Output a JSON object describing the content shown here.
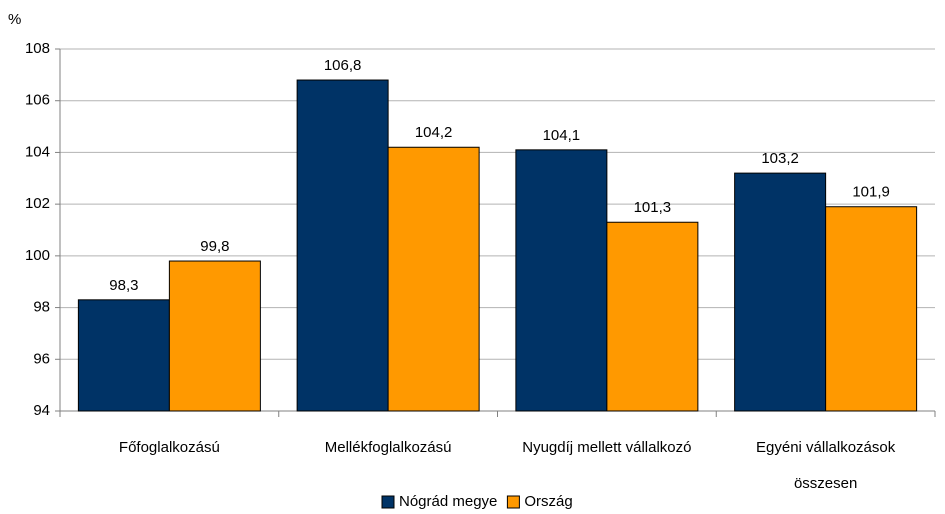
{
  "chart_data": {
    "type": "bar",
    "y_label": "%",
    "categories": [
      "Főfoglalkozású",
      "Mellékfoglalkozású",
      "Nyugdíj mellett vállalkozó",
      "Egyéni vállalkozások összesen"
    ],
    "series": [
      {
        "name": "Nógrád megye",
        "color": "#003366",
        "values": [
          98.3,
          106.8,
          104.1,
          103.2
        ],
        "value_labels": [
          "98,3",
          "106,8",
          "104,1",
          "103,2"
        ]
      },
      {
        "name": "Ország",
        "color": "#ff9900",
        "values": [
          99.8,
          104.2,
          101.3,
          101.9
        ],
        "value_labels": [
          "99,8",
          "104,2",
          "101,3",
          "101,9"
        ]
      }
    ],
    "ylim": [
      94,
      108
    ],
    "yticks": [
      94,
      96,
      98,
      100,
      102,
      104,
      106,
      108
    ],
    "grid": true,
    "legend": "bottom"
  }
}
